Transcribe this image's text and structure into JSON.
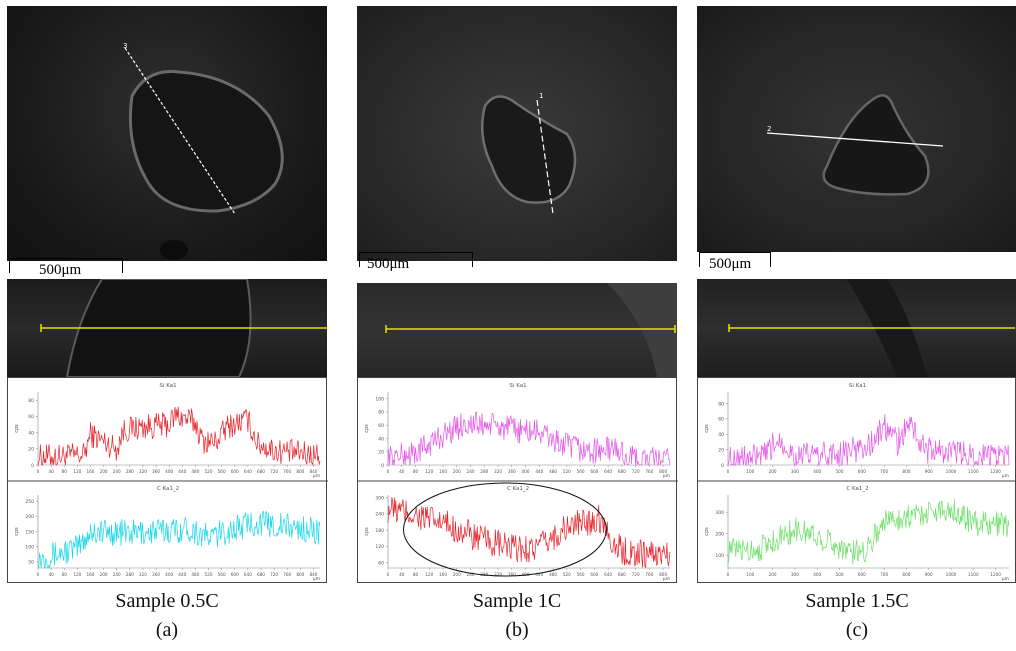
{
  "scale_label": "500μm",
  "colors": {
    "red": "#e8232b",
    "cyan": "#19d8ea",
    "magenta": "#e45ae8",
    "green": "#6fe06a",
    "yellow": "#e6e000",
    "line_white": "#ffffff"
  },
  "panels": [
    {
      "caption": "Sample 0.5C",
      "label": "(a)",
      "marker": "3",
      "top_title": "Si Ka1",
      "bottom_title": "C Ka1_2",
      "x_unit": "μm",
      "top_y_unit": "cps",
      "bottom_y_unit": "cps",
      "top_color": "red",
      "bottom_color": "cyan",
      "ellipse": false
    },
    {
      "caption": "Sample 1C",
      "label": "(b)",
      "marker": "1",
      "top_title": "Si Ka1",
      "bottom_title": "C Ka1_2",
      "x_unit": "μm",
      "top_y_unit": "cps",
      "bottom_y_unit": "cps",
      "top_color": "magenta",
      "bottom_color": "red",
      "ellipse": true
    },
    {
      "caption": "Sample 1.5C",
      "label": "(c)",
      "marker": "2",
      "top_title": "Si Ka1",
      "bottom_title": "C Ka1_2",
      "x_unit": "μm",
      "top_y_unit": "cps",
      "bottom_y_unit": "cps",
      "top_color": "magenta",
      "bottom_color": "green",
      "ellipse": false
    }
  ],
  "chart_data": [
    {
      "type": "line",
      "panel": "a",
      "title": "Si Ka1",
      "ylabel": "cps",
      "xlabel": "μm",
      "x_ticks": [
        "0",
        "40",
        "80",
        "120",
        "160",
        "200",
        "240",
        "280",
        "320",
        "360",
        "400",
        "440",
        "480",
        "520",
        "560",
        "600",
        "640",
        "680",
        "720",
        "760",
        "800",
        "840"
      ],
      "y_ticks": [
        "0",
        "20",
        "40",
        "60",
        "80"
      ],
      "xlim": [
        0,
        860
      ],
      "ylim": [
        0,
        90
      ],
      "profile": [
        [
          0,
          10
        ],
        [
          140,
          12
        ],
        [
          160,
          38
        ],
        [
          240,
          20
        ],
        [
          260,
          42
        ],
        [
          300,
          46
        ],
        [
          400,
          50
        ],
        [
          420,
          62
        ],
        [
          480,
          52
        ],
        [
          500,
          30
        ],
        [
          540,
          28
        ],
        [
          580,
          48
        ],
        [
          640,
          56
        ],
        [
          670,
          26
        ],
        [
          720,
          18
        ],
        [
          860,
          12
        ]
      ],
      "noise": 16
    },
    {
      "type": "line",
      "panel": "a",
      "title": "C Ka1_2",
      "ylabel": "cps",
      "xlabel": "μm",
      "x_ticks": [
        "0",
        "40",
        "80",
        "120",
        "160",
        "200",
        "240",
        "280",
        "320",
        "360",
        "400",
        "440",
        "480",
        "520",
        "560",
        "600",
        "640",
        "680",
        "720",
        "760",
        "800",
        "840"
      ],
      "y_ticks": [
        "50",
        "100",
        "150",
        "200",
        "250"
      ],
      "xlim": [
        0,
        860
      ],
      "ylim": [
        30,
        270
      ],
      "profile": [
        [
          0,
          60
        ],
        [
          120,
          95
        ],
        [
          160,
          150
        ],
        [
          300,
          145
        ],
        [
          460,
          160
        ],
        [
          520,
          130
        ],
        [
          660,
          180
        ],
        [
          760,
          165
        ],
        [
          860,
          150
        ]
      ],
      "noise": 45
    },
    {
      "type": "line",
      "panel": "b",
      "title": "Si Ka1",
      "ylabel": "cps",
      "xlabel": "μm",
      "x_ticks": [
        "0",
        "40",
        "80",
        "120",
        "160",
        "200",
        "240",
        "280",
        "320",
        "360",
        "400",
        "440",
        "480",
        "520",
        "560",
        "600",
        "640",
        "680",
        "720",
        "760",
        "800"
      ],
      "y_ticks": [
        "0",
        "20",
        "40",
        "60",
        "80",
        "100"
      ],
      "xlim": [
        0,
        820
      ],
      "ylim": [
        0,
        110
      ],
      "profile": [
        [
          0,
          10
        ],
        [
          80,
          18
        ],
        [
          160,
          45
        ],
        [
          220,
          62
        ],
        [
          300,
          60
        ],
        [
          380,
          52
        ],
        [
          440,
          50
        ],
        [
          500,
          32
        ],
        [
          580,
          20
        ],
        [
          660,
          25
        ],
        [
          700,
          10
        ],
        [
          820,
          6
        ]
      ],
      "noise": 20
    },
    {
      "type": "line",
      "panel": "b",
      "title": "C Ka1_2",
      "ylabel": "cps",
      "xlabel": "μm",
      "x_ticks": [
        "0",
        "40",
        "80",
        "120",
        "160",
        "200",
        "240",
        "280",
        "320",
        "360",
        "400",
        "440",
        "480",
        "520",
        "560",
        "600",
        "640",
        "680",
        "720",
        "760",
        "800"
      ],
      "y_ticks": [
        "60",
        "120",
        "180",
        "240",
        "300"
      ],
      "xlim": [
        0,
        820
      ],
      "ylim": [
        40,
        310
      ],
      "profile": [
        [
          0,
          260
        ],
        [
          80,
          235
        ],
        [
          180,
          195
        ],
        [
          260,
          150
        ],
        [
          360,
          110
        ],
        [
          440,
          115
        ],
        [
          520,
          190
        ],
        [
          620,
          225
        ],
        [
          660,
          120
        ],
        [
          700,
          95
        ],
        [
          820,
          90
        ]
      ],
      "noise": 55
    },
    {
      "type": "line",
      "panel": "c",
      "title": "Si Ka1",
      "ylabel": "cps",
      "xlabel": "μm",
      "x_ticks": [
        "0",
        "100",
        "200",
        "300",
        "400",
        "500",
        "600",
        "700",
        "800",
        "900",
        "1000",
        "1100",
        "1200"
      ],
      "y_ticks": [
        "0",
        "20",
        "40",
        "60",
        "80"
      ],
      "xlim": [
        0,
        1260
      ],
      "ylim": [
        0,
        95
      ],
      "profile": [
        [
          0,
          8
        ],
        [
          160,
          10
        ],
        [
          230,
          35
        ],
        [
          300,
          12
        ],
        [
          500,
          14
        ],
        [
          640,
          26
        ],
        [
          700,
          50
        ],
        [
          760,
          30
        ],
        [
          820,
          55
        ],
        [
          880,
          20
        ],
        [
          1260,
          8
        ]
      ],
      "noise": 18
    },
    {
      "type": "line",
      "panel": "c",
      "title": "C Ka1_2",
      "ylabel": "cps",
      "xlabel": "μm",
      "x_ticks": [
        "0",
        "100",
        "200",
        "300",
        "400",
        "500",
        "600",
        "700",
        "800",
        "900",
        "1000",
        "1100",
        "1200"
      ],
      "y_ticks": [
        "100",
        "200",
        "300"
      ],
      "xlim": [
        0,
        1260
      ],
      "ylim": [
        40,
        380
      ],
      "profile": [
        [
          0,
          120
        ],
        [
          140,
          130
        ],
        [
          300,
          220
        ],
        [
          400,
          190
        ],
        [
          560,
          110
        ],
        [
          620,
          130
        ],
        [
          700,
          260
        ],
        [
          800,
          280
        ],
        [
          900,
          300
        ],
        [
          1000,
          320
        ],
        [
          1100,
          250
        ],
        [
          1260,
          240
        ]
      ],
      "noise": 60
    }
  ]
}
